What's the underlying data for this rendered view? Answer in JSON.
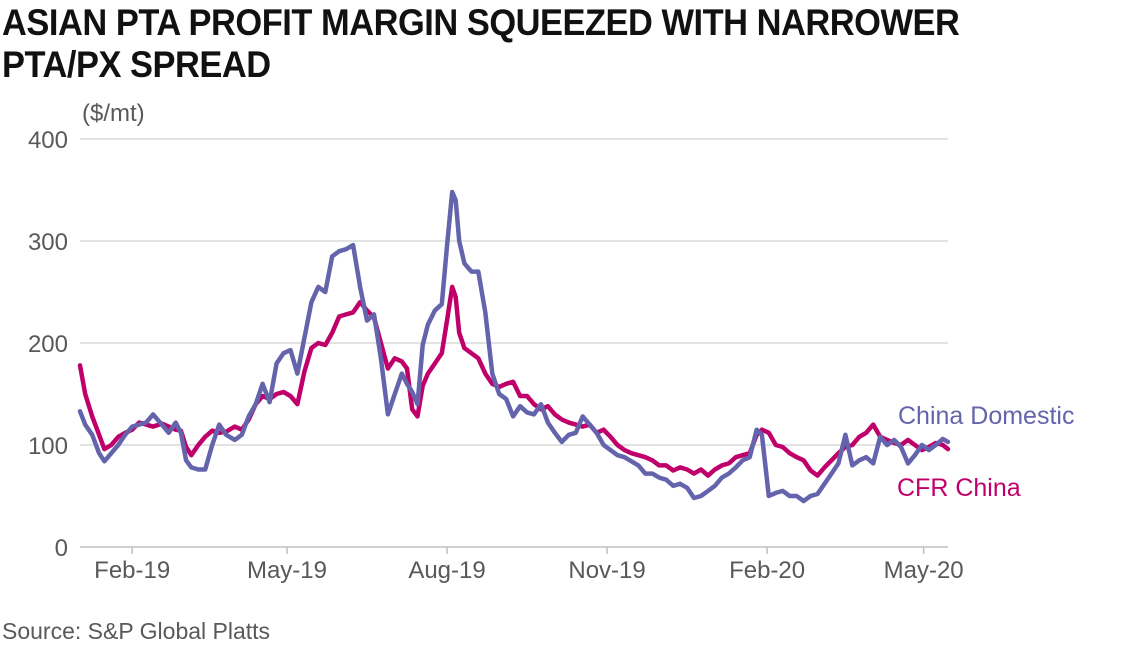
{
  "title": "ASIAN PTA PROFIT MARGIN SQUEEZED WITH NARROWER PTA/PX SPREAD",
  "source": "Source: S&P Global Platts",
  "colors": {
    "china_domestic": "#6464ac",
    "cfr_china": "#c0006a",
    "grid": "#d9d9d9",
    "axis_text": "#595959"
  },
  "chart_data": {
    "type": "line",
    "unit_label": "($/mt)",
    "xlabel": "",
    "ylabel": "",
    "ylim": [
      0,
      400
    ],
    "xlim": [
      "2019-01-02",
      "2020-05-15"
    ],
    "y_ticks": [
      0,
      100,
      200,
      300,
      400
    ],
    "x_ticks": [
      {
        "date": "2019-02-01",
        "label": "Feb-19"
      },
      {
        "date": "2019-05-01",
        "label": "May-19"
      },
      {
        "date": "2019-08-01",
        "label": "Aug-19"
      },
      {
        "date": "2019-11-01",
        "label": "Nov-19"
      },
      {
        "date": "2020-02-01",
        "label": "Feb-20"
      },
      {
        "date": "2020-05-01",
        "label": "May-20"
      }
    ],
    "grid": true,
    "series": [
      {
        "name": "CFR China",
        "color": "#c0006a",
        "label_position": "right",
        "points": [
          [
            "2019-01-02",
            178
          ],
          [
            "2019-01-05",
            150
          ],
          [
            "2019-01-09",
            128
          ],
          [
            "2019-01-13",
            110
          ],
          [
            "2019-01-16",
            96
          ],
          [
            "2019-01-20",
            100
          ],
          [
            "2019-01-24",
            108
          ],
          [
            "2019-01-28",
            112
          ],
          [
            "2019-02-01",
            115
          ],
          [
            "2019-02-05",
            122
          ],
          [
            "2019-02-09",
            120
          ],
          [
            "2019-02-13",
            118
          ],
          [
            "2019-02-18",
            121
          ],
          [
            "2019-02-22",
            118
          ],
          [
            "2019-02-26",
            115
          ],
          [
            "2019-03-01",
            114
          ],
          [
            "2019-03-04",
            98
          ],
          [
            "2019-03-07",
            90
          ],
          [
            "2019-03-11",
            100
          ],
          [
            "2019-03-15",
            108
          ],
          [
            "2019-03-19",
            114
          ],
          [
            "2019-03-23",
            112
          ],
          [
            "2019-03-27",
            113
          ],
          [
            "2019-04-01",
            118
          ],
          [
            "2019-04-05",
            115
          ],
          [
            "2019-04-09",
            125
          ],
          [
            "2019-04-13",
            140
          ],
          [
            "2019-04-17",
            148
          ],
          [
            "2019-04-21",
            145
          ],
          [
            "2019-04-25",
            150
          ],
          [
            "2019-04-29",
            152
          ],
          [
            "2019-05-03",
            148
          ],
          [
            "2019-05-07",
            140
          ],
          [
            "2019-05-11",
            172
          ],
          [
            "2019-05-15",
            195
          ],
          [
            "2019-05-19",
            200
          ],
          [
            "2019-05-23",
            198
          ],
          [
            "2019-05-27",
            210
          ],
          [
            "2019-05-31",
            226
          ],
          [
            "2019-06-04",
            228
          ],
          [
            "2019-06-08",
            230
          ],
          [
            "2019-06-12",
            240
          ],
          [
            "2019-06-16",
            232
          ],
          [
            "2019-06-20",
            225
          ],
          [
            "2019-06-24",
            200
          ],
          [
            "2019-06-28",
            175
          ],
          [
            "2019-07-02",
            185
          ],
          [
            "2019-07-06",
            182
          ],
          [
            "2019-07-09",
            175
          ],
          [
            "2019-07-12",
            135
          ],
          [
            "2019-07-15",
            128
          ],
          [
            "2019-07-18",
            158
          ],
          [
            "2019-07-21",
            170
          ],
          [
            "2019-07-25",
            180
          ],
          [
            "2019-07-29",
            190
          ],
          [
            "2019-08-01",
            222
          ],
          [
            "2019-08-04",
            255
          ],
          [
            "2019-08-06",
            245
          ],
          [
            "2019-08-08",
            210
          ],
          [
            "2019-08-11",
            195
          ],
          [
            "2019-08-15",
            190
          ],
          [
            "2019-08-19",
            185
          ],
          [
            "2019-08-23",
            170
          ],
          [
            "2019-08-27",
            160
          ],
          [
            "2019-08-31",
            157
          ],
          [
            "2019-09-04",
            160
          ],
          [
            "2019-09-08",
            162
          ],
          [
            "2019-09-12",
            148
          ],
          [
            "2019-09-16",
            148
          ],
          [
            "2019-09-20",
            140
          ],
          [
            "2019-09-24",
            135
          ],
          [
            "2019-09-28",
            138
          ],
          [
            "2019-10-02",
            130
          ],
          [
            "2019-10-06",
            125
          ],
          [
            "2019-10-10",
            122
          ],
          [
            "2019-10-14",
            120
          ],
          [
            "2019-10-18",
            118
          ],
          [
            "2019-10-22",
            120
          ],
          [
            "2019-10-26",
            112
          ],
          [
            "2019-10-30",
            115
          ],
          [
            "2019-11-03",
            108
          ],
          [
            "2019-11-07",
            100
          ],
          [
            "2019-11-11",
            95
          ],
          [
            "2019-11-15",
            92
          ],
          [
            "2019-11-19",
            90
          ],
          [
            "2019-11-23",
            88
          ],
          [
            "2019-11-27",
            85
          ],
          [
            "2019-12-01",
            80
          ],
          [
            "2019-12-05",
            80
          ],
          [
            "2019-12-09",
            75
          ],
          [
            "2019-12-13",
            78
          ],
          [
            "2019-12-17",
            76
          ],
          [
            "2019-12-21",
            72
          ],
          [
            "2019-12-25",
            76
          ],
          [
            "2019-12-29",
            70
          ],
          [
            "2020-01-02",
            76
          ],
          [
            "2020-01-06",
            80
          ],
          [
            "2020-01-10",
            82
          ],
          [
            "2020-01-14",
            88
          ],
          [
            "2020-01-18",
            90
          ],
          [
            "2020-01-22",
            92
          ],
          [
            "2020-01-26",
            110
          ],
          [
            "2020-01-29",
            115
          ],
          [
            "2020-02-02",
            112
          ],
          [
            "2020-02-06",
            100
          ],
          [
            "2020-02-10",
            98
          ],
          [
            "2020-02-14",
            92
          ],
          [
            "2020-02-18",
            88
          ],
          [
            "2020-02-22",
            85
          ],
          [
            "2020-02-26",
            75
          ],
          [
            "2020-03-01",
            70
          ],
          [
            "2020-03-05",
            78
          ],
          [
            "2020-03-09",
            85
          ],
          [
            "2020-03-13",
            92
          ],
          [
            "2020-03-17",
            98
          ],
          [
            "2020-03-21",
            100
          ],
          [
            "2020-03-25",
            108
          ],
          [
            "2020-03-29",
            112
          ],
          [
            "2020-04-02",
            120
          ],
          [
            "2020-04-06",
            108
          ],
          [
            "2020-04-10",
            105
          ],
          [
            "2020-04-14",
            102
          ],
          [
            "2020-04-18",
            100
          ],
          [
            "2020-04-22",
            105
          ],
          [
            "2020-04-26",
            100
          ],
          [
            "2020-04-30",
            95
          ],
          [
            "2020-05-04",
            98
          ],
          [
            "2020-05-08",
            102
          ],
          [
            "2020-05-12",
            100
          ],
          [
            "2020-05-15",
            96
          ]
        ]
      },
      {
        "name": "China Domestic",
        "color": "#6464ac",
        "label_position": "right",
        "points": [
          [
            "2019-01-02",
            133
          ],
          [
            "2019-01-05",
            120
          ],
          [
            "2019-01-09",
            110
          ],
          [
            "2019-01-13",
            92
          ],
          [
            "2019-01-16",
            84
          ],
          [
            "2019-01-20",
            92
          ],
          [
            "2019-01-24",
            100
          ],
          [
            "2019-01-28",
            110
          ],
          [
            "2019-02-01",
            118
          ],
          [
            "2019-02-05",
            120
          ],
          [
            "2019-02-09",
            122
          ],
          [
            "2019-02-13",
            130
          ],
          [
            "2019-02-18",
            120
          ],
          [
            "2019-02-22",
            112
          ],
          [
            "2019-02-26",
            122
          ],
          [
            "2019-03-01",
            112
          ],
          [
            "2019-03-04",
            85
          ],
          [
            "2019-03-07",
            78
          ],
          [
            "2019-03-11",
            76
          ],
          [
            "2019-03-15",
            76
          ],
          [
            "2019-03-19",
            100
          ],
          [
            "2019-03-23",
            120
          ],
          [
            "2019-03-27",
            110
          ],
          [
            "2019-04-01",
            105
          ],
          [
            "2019-04-05",
            110
          ],
          [
            "2019-04-09",
            128
          ],
          [
            "2019-04-13",
            140
          ],
          [
            "2019-04-17",
            160
          ],
          [
            "2019-04-21",
            142
          ],
          [
            "2019-04-25",
            180
          ],
          [
            "2019-04-29",
            190
          ],
          [
            "2019-05-03",
            193
          ],
          [
            "2019-05-07",
            170
          ],
          [
            "2019-05-11",
            205
          ],
          [
            "2019-05-15",
            240
          ],
          [
            "2019-05-19",
            255
          ],
          [
            "2019-05-23",
            250
          ],
          [
            "2019-05-27",
            285
          ],
          [
            "2019-05-31",
            290
          ],
          [
            "2019-06-04",
            292
          ],
          [
            "2019-06-08",
            296
          ],
          [
            "2019-06-12",
            255
          ],
          [
            "2019-06-16",
            222
          ],
          [
            "2019-06-20",
            228
          ],
          [
            "2019-06-24",
            185
          ],
          [
            "2019-06-28",
            130
          ],
          [
            "2019-07-02",
            150
          ],
          [
            "2019-07-06",
            170
          ],
          [
            "2019-07-09",
            160
          ],
          [
            "2019-07-12",
            152
          ],
          [
            "2019-07-15",
            140
          ],
          [
            "2019-07-18",
            198
          ],
          [
            "2019-07-21",
            218
          ],
          [
            "2019-07-25",
            232
          ],
          [
            "2019-07-29",
            238
          ],
          [
            "2019-08-01",
            295
          ],
          [
            "2019-08-04",
            348
          ],
          [
            "2019-08-06",
            340
          ],
          [
            "2019-08-08",
            300
          ],
          [
            "2019-08-11",
            278
          ],
          [
            "2019-08-15",
            270
          ],
          [
            "2019-08-19",
            270
          ],
          [
            "2019-08-23",
            230
          ],
          [
            "2019-08-27",
            170
          ],
          [
            "2019-08-31",
            150
          ],
          [
            "2019-09-04",
            145
          ],
          [
            "2019-09-08",
            128
          ],
          [
            "2019-09-12",
            138
          ],
          [
            "2019-09-16",
            132
          ],
          [
            "2019-09-20",
            130
          ],
          [
            "2019-09-24",
            140
          ],
          [
            "2019-09-28",
            122
          ],
          [
            "2019-10-02",
            112
          ],
          [
            "2019-10-06",
            103
          ],
          [
            "2019-10-10",
            110
          ],
          [
            "2019-10-14",
            112
          ],
          [
            "2019-10-18",
            128
          ],
          [
            "2019-10-22",
            120
          ],
          [
            "2019-10-26",
            112
          ],
          [
            "2019-10-30",
            100
          ],
          [
            "2019-11-03",
            95
          ],
          [
            "2019-11-07",
            90
          ],
          [
            "2019-11-11",
            88
          ],
          [
            "2019-11-15",
            84
          ],
          [
            "2019-11-19",
            80
          ],
          [
            "2019-11-23",
            72
          ],
          [
            "2019-11-27",
            72
          ],
          [
            "2019-12-01",
            68
          ],
          [
            "2019-12-05",
            66
          ],
          [
            "2019-12-09",
            60
          ],
          [
            "2019-12-13",
            62
          ],
          [
            "2019-12-17",
            58
          ],
          [
            "2019-12-21",
            48
          ],
          [
            "2019-12-25",
            50
          ],
          [
            "2019-12-29",
            55
          ],
          [
            "2020-01-02",
            60
          ],
          [
            "2020-01-06",
            68
          ],
          [
            "2020-01-10",
            72
          ],
          [
            "2020-01-14",
            78
          ],
          [
            "2020-01-18",
            85
          ],
          [
            "2020-01-22",
            88
          ],
          [
            "2020-01-26",
            115
          ],
          [
            "2020-01-29",
            110
          ],
          [
            "2020-02-02",
            50
          ],
          [
            "2020-02-06",
            53
          ],
          [
            "2020-02-10",
            55
          ],
          [
            "2020-02-14",
            50
          ],
          [
            "2020-02-18",
            50
          ],
          [
            "2020-02-22",
            45
          ],
          [
            "2020-02-26",
            50
          ],
          [
            "2020-03-01",
            52
          ],
          [
            "2020-03-05",
            62
          ],
          [
            "2020-03-09",
            72
          ],
          [
            "2020-03-13",
            82
          ],
          [
            "2020-03-17",
            110
          ],
          [
            "2020-03-21",
            80
          ],
          [
            "2020-03-25",
            85
          ],
          [
            "2020-03-29",
            88
          ],
          [
            "2020-04-02",
            82
          ],
          [
            "2020-04-06",
            108
          ],
          [
            "2020-04-10",
            100
          ],
          [
            "2020-04-14",
            105
          ],
          [
            "2020-04-18",
            98
          ],
          [
            "2020-04-22",
            82
          ],
          [
            "2020-04-26",
            90
          ],
          [
            "2020-04-30",
            100
          ],
          [
            "2020-05-04",
            95
          ],
          [
            "2020-05-08",
            100
          ],
          [
            "2020-05-12",
            106
          ],
          [
            "2020-05-15",
            103
          ]
        ]
      }
    ]
  }
}
